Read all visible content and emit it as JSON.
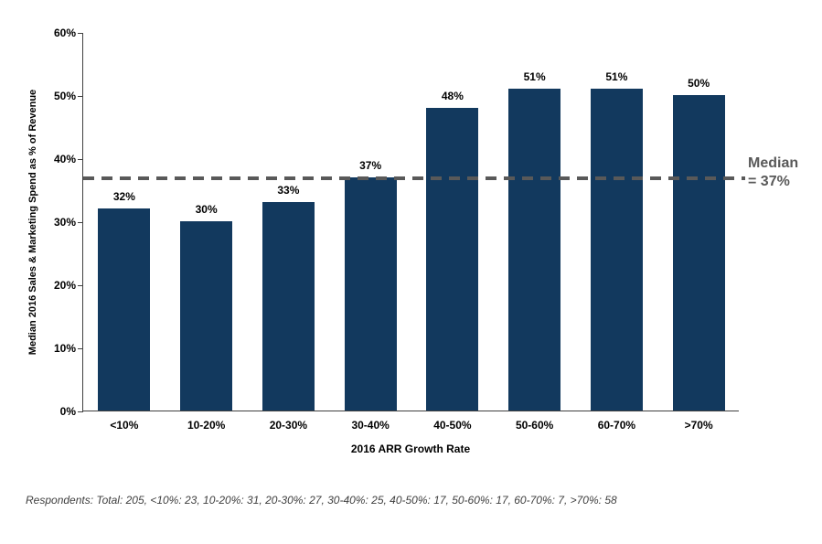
{
  "chart_data": {
    "type": "bar",
    "title": "",
    "categories": [
      "<10%",
      "10-20%",
      "20-30%",
      "30-40%",
      "40-50%",
      "50-60%",
      "60-70%",
      ">70%"
    ],
    "values": [
      32,
      30,
      33,
      37,
      48,
      51,
      51,
      50
    ],
    "bar_labels": [
      "32%",
      "30%",
      "33%",
      "37%",
      "48%",
      "51%",
      "51%",
      "50%"
    ],
    "xlabel": "2016 ARR Growth Rate",
    "ylabel": "Median 2016 Sales & Marketing Spend as % of Revenue",
    "ylim": [
      0,
      60
    ],
    "yticks": [
      0,
      10,
      20,
      30,
      40,
      50,
      60
    ],
    "ytick_labels": [
      "0%",
      "10%",
      "20%",
      "30%",
      "40%",
      "50%",
      "60%"
    ],
    "grid": false,
    "legend": false,
    "bar_color": "#12395E",
    "median_line": {
      "value": 37,
      "label_line1": "Median",
      "label_line2": "= 37%",
      "color": "#595959"
    }
  },
  "footer": {
    "note": "Respondents: Total: 205, <10%: 23, 10-20%: 31, 20-30%: 27, 30-40%: 25, 40-50%: 17, 50-60%: 17, 60-70%: 7, >70%: 58"
  }
}
